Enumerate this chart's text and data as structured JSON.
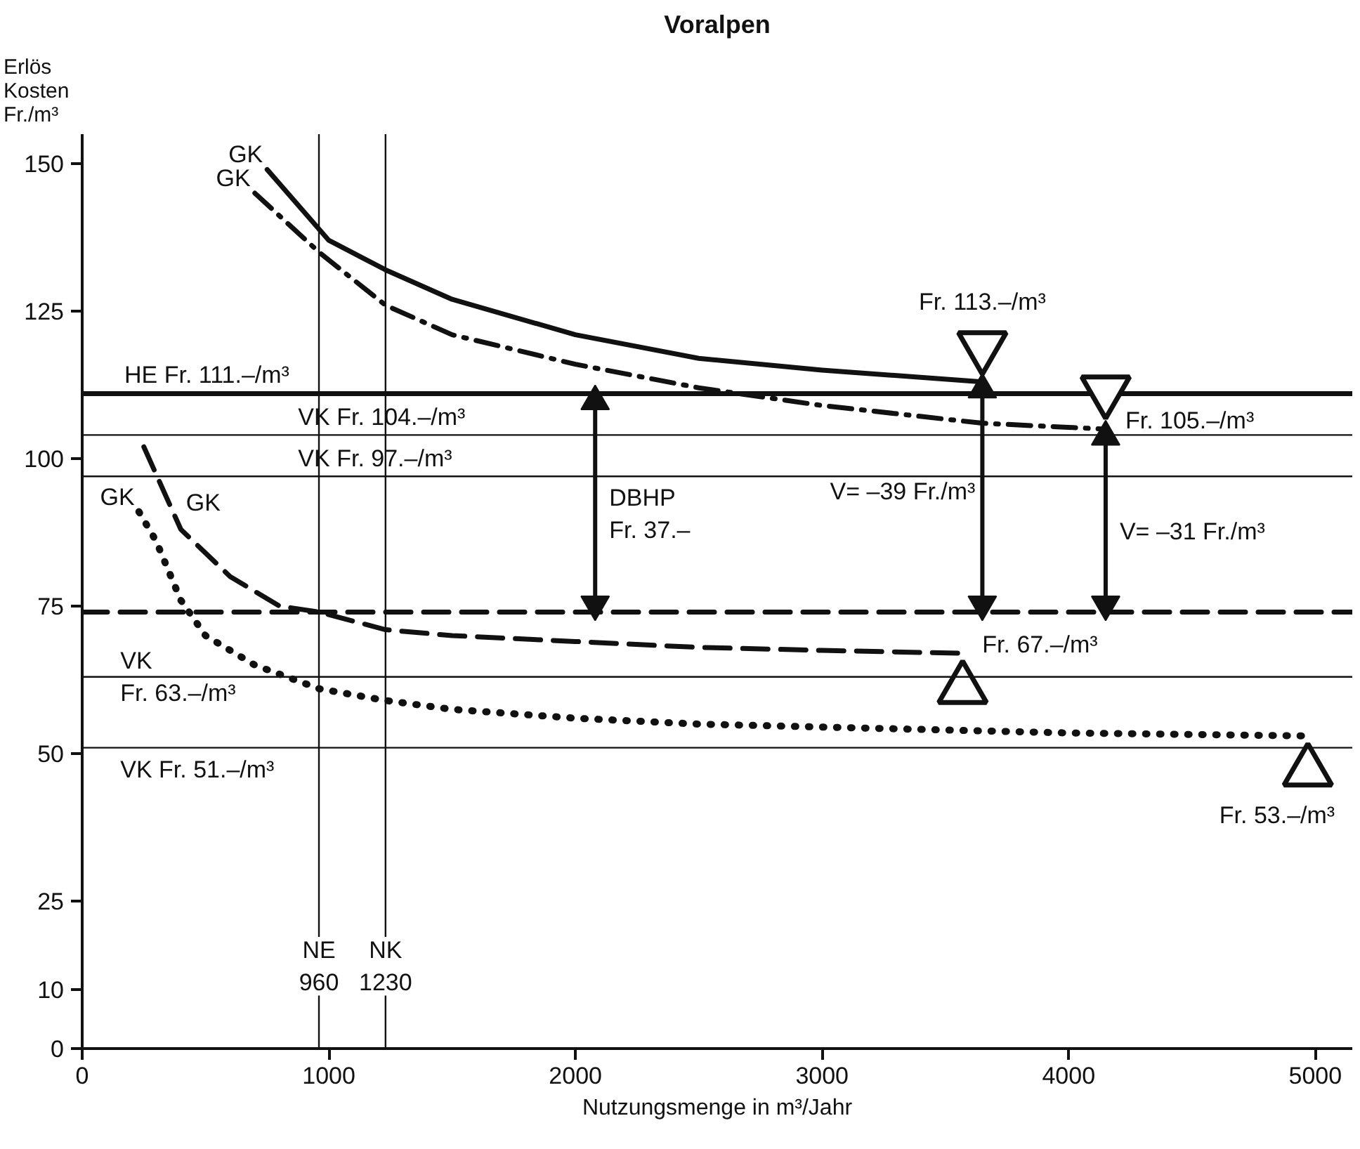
{
  "chart_data": {
    "type": "line",
    "title": "Voralpen",
    "xlabel": "Nutzungsmenge in m³/Jahr",
    "ylabel": "Erlös\nKosten\nFr./m³",
    "xlim": [
      0,
      5150
    ],
    "ylim": [
      0,
      155
    ],
    "xticks": [
      0,
      1000,
      2000,
      3000,
      4000,
      5000
    ],
    "yticks": [
      0,
      10,
      25,
      50,
      75,
      100,
      125,
      150
    ],
    "series": [
      {
        "name": "GK",
        "color": "#111111",
        "line_style": "solid",
        "x": [
          750,
          1000,
          1230,
          1500,
          2000,
          2500,
          3000,
          3650
        ],
        "values": [
          149,
          137,
          132,
          127,
          121,
          117,
          115,
          113
        ]
      },
      {
        "name": "GK",
        "color": "#111111",
        "line_style": "dashdot",
        "x": [
          700,
          960,
          1230,
          1500,
          2000,
          2500,
          3000,
          3650,
          4150
        ],
        "values": [
          145,
          135,
          126,
          121,
          116,
          112,
          109,
          106,
          105
        ]
      },
      {
        "name": "HE  Fr. 111.–/m³",
        "color": "#111111",
        "line_style": "solid",
        "x": [
          0,
          5150
        ],
        "values": [
          111,
          111
        ]
      },
      {
        "color": "#111111",
        "line_style": "dashed",
        "x": [
          0,
          5150
        ],
        "values": [
          74,
          74
        ]
      },
      {
        "name": "GK",
        "color": "#111111",
        "line_style": "dashed",
        "x": [
          250,
          400,
          600,
          800,
          960,
          1230,
          1500,
          2000,
          2500,
          3000,
          3570
        ],
        "values": [
          102,
          88,
          80,
          75,
          74,
          71,
          70,
          69,
          68,
          67.5,
          67
        ]
      },
      {
        "name": "GK",
        "color": "#111111",
        "line_style": "dotted",
        "x": [
          230,
          300,
          400,
          500,
          700,
          960,
          1230,
          1500,
          2000,
          2500,
          3000,
          4000,
          4970
        ],
        "values": [
          91,
          86,
          76,
          70,
          65,
          61,
          59,
          57.5,
          56,
          55,
          54.5,
          53.5,
          53
        ]
      },
      {
        "name": "DBHP\nFr. 37.–",
        "color": "#111111",
        "marker": "triangle",
        "line_style": "solid",
        "x": [
          2080,
          2080
        ],
        "values": [
          74,
          111
        ]
      },
      {
        "name": "V= –39 Fr./m³",
        "color": "#111111",
        "marker": "triangle",
        "line_style": "solid",
        "x": [
          3650,
          3650
        ],
        "values": [
          74,
          113
        ]
      },
      {
        "name": "V= –31 Fr./m³",
        "color": "#111111",
        "marker": "triangle",
        "line_style": "solid",
        "x": [
          4150,
          4150
        ],
        "values": [
          74,
          105
        ]
      },
      {
        "type": "scatter",
        "color": "#111111",
        "marker": "triangle",
        "x": [
          3650,
          4150,
          3570,
          4970
        ],
        "values": [
          119,
          111.5,
          61,
          47
        ]
      }
    ],
    "ref_lines": [
      {
        "axis": "y",
        "value": 104,
        "label": "VK  Fr. 104.–/m³",
        "color": "#111111"
      },
      {
        "axis": "y",
        "value": 97,
        "label": "VK  Fr. 97.–/m³",
        "color": "#111111"
      },
      {
        "axis": "y",
        "value": 63,
        "label": "VK\nFr. 63.–/m³",
        "color": "#111111"
      },
      {
        "axis": "y",
        "value": 51,
        "label": "VK  Fr. 51.–/m³",
        "color": "#111111"
      },
      {
        "axis": "x",
        "value": 960,
        "label": "NE\n960",
        "color": "#111111"
      },
      {
        "axis": "x",
        "value": 1230,
        "label": "NK\n1230",
        "color": "#111111"
      }
    ],
    "annotations": [
      {
        "text": "Fr. 113.–/m³",
        "x": 3650,
        "y": 113
      },
      {
        "text": "Fr. 105.–/m³",
        "x": 4150,
        "y": 105
      },
      {
        "text": "Fr. 67.–/m³",
        "x": 3570,
        "y": 67
      },
      {
        "text": "Fr. 53.–/m³",
        "x": 4970,
        "y": 47
      }
    ]
  }
}
